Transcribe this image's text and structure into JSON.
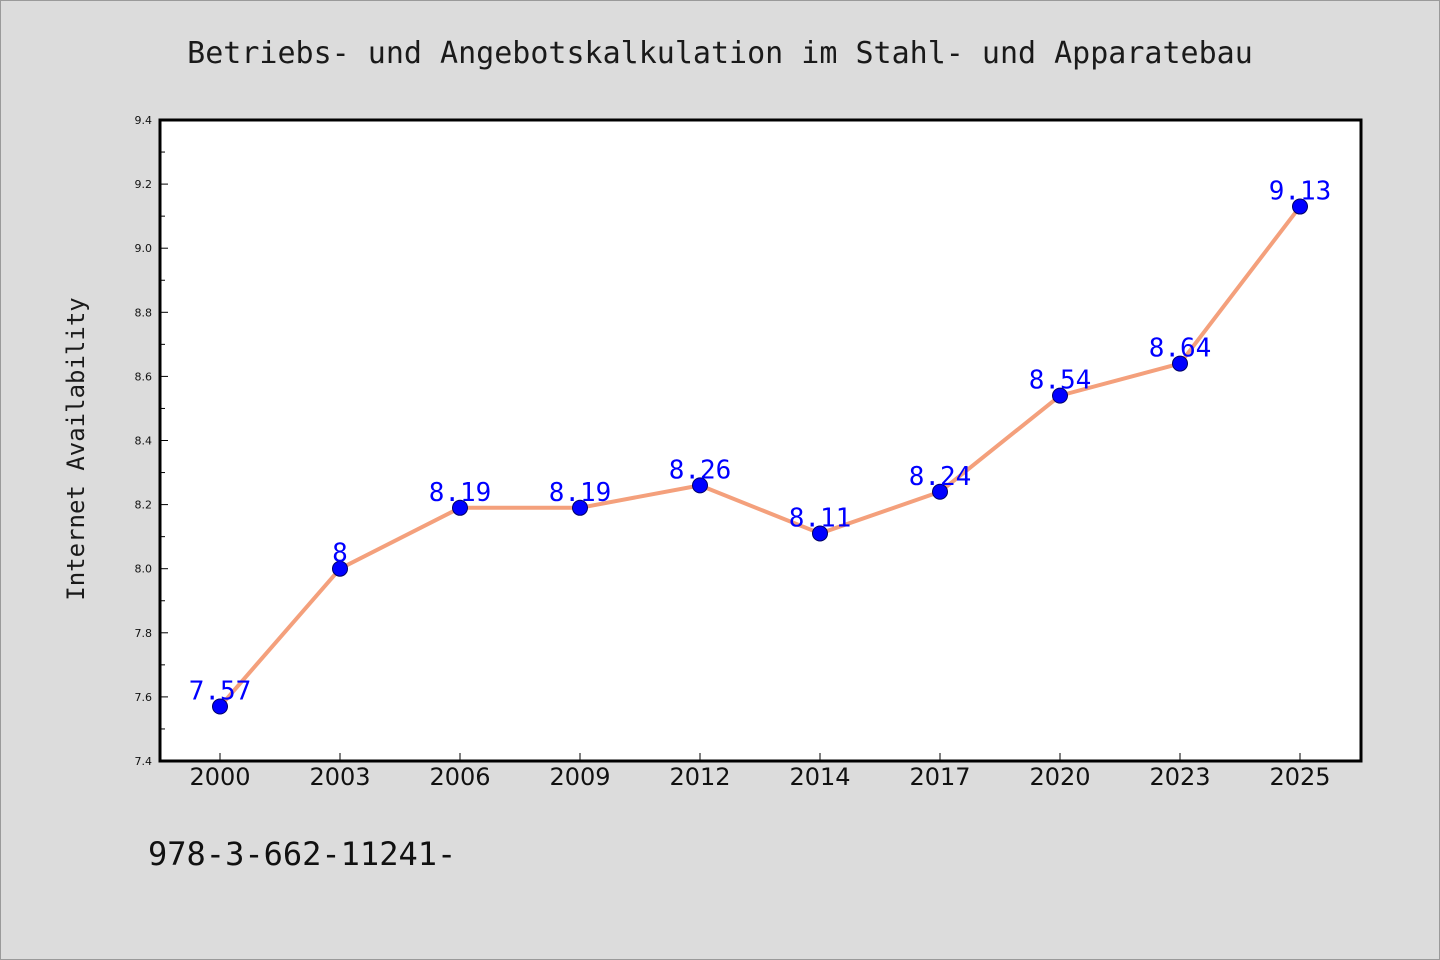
{
  "chart_data": {
    "type": "line",
    "title": "Betriebs- und Angebotskalkulation im Stahl- und Apparatebau",
    "xlabel": "",
    "ylabel": "Internet Availability",
    "categories": [
      "2000",
      "2003",
      "2006",
      "2009",
      "2012",
      "2014",
      "2017",
      "2020",
      "2023",
      "2025"
    ],
    "series": [
      {
        "values": [
          7.57,
          8,
          8.19,
          8.19,
          8.26,
          8.11,
          8.24,
          8.54,
          8.64,
          9.13
        ]
      }
    ],
    "data_labels": [
      "7.57",
      "8",
      "8.19",
      "8.19",
      "8.26",
      "8.11",
      "8.24",
      "8.54",
      "8.64",
      "9.13"
    ],
    "ylim": [
      7.4,
      9.4
    ],
    "yticks": [
      "7.4",
      "7.6",
      "7.8",
      "8.0",
      "8.2",
      "8.4",
      "8.6",
      "8.8",
      "9.0",
      "9.2",
      "9.4"
    ],
    "grid": false,
    "legend": "none",
    "colors": {
      "line": "#f4a07c",
      "marker": "#0000ff",
      "label": "#0000ff"
    }
  },
  "footer": {
    "code": "978-3-662-11241-"
  }
}
